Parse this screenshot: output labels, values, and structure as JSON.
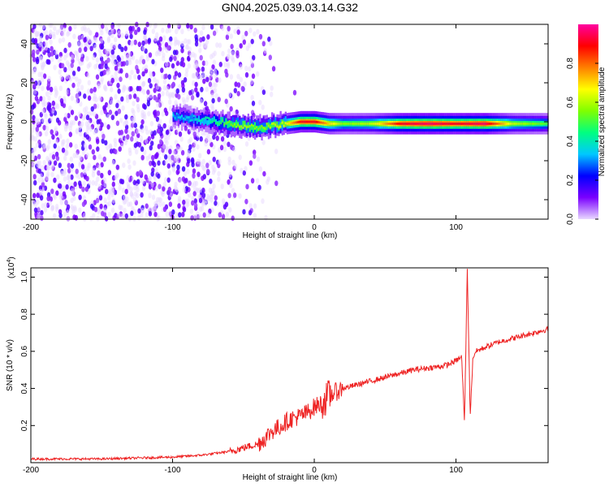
{
  "title": "GN04.2025.039.03.14.G32",
  "charts": [
    {
      "type": "heatmap",
      "xlabel": "Height of straight line (km)",
      "ylabel": "Frequency (Hz)",
      "xlim": [
        -200,
        165
      ],
      "ylim": [
        -50,
        50
      ],
      "xticks": [
        -200,
        -100,
        0,
        100
      ],
      "yticks": [
        -40,
        -20,
        0,
        20,
        40
      ],
      "colorbar": {
        "label": "Normalized spectral amplitude",
        "range": [
          0,
          1
        ],
        "ticks": [
          "0.0",
          "0.2",
          "0.4",
          "0.6",
          "0.8"
        ],
        "colors": [
          "#e8d8ff",
          "#7a00ff",
          "#0000ff",
          "#00c8ff",
          "#00ff80",
          "#80ff00",
          "#ffff00",
          "#ff8000",
          "#ff0000",
          "#ff00a0"
        ]
      },
      "ridge": {
        "description_points_x": [
          -100,
          -90,
          -80,
          -70,
          -60,
          -50,
          -40,
          -30,
          -20,
          -10,
          0,
          10,
          20,
          40,
          60,
          80,
          100,
          120,
          140,
          165
        ],
        "center_freq_hz": [
          3,
          2,
          1,
          0,
          -1,
          -2,
          -3,
          -2,
          -1,
          0,
          0,
          -1,
          -1,
          -1,
          -1,
          -1,
          -1,
          -1,
          -1,
          -1
        ],
        "peak_amplitude": [
          0.35,
          0.35,
          0.4,
          0.45,
          0.55,
          0.6,
          0.55,
          0.6,
          0.65,
          0.9,
          0.9,
          0.7,
          0.55,
          0.6,
          0.9,
          0.95,
          0.9,
          0.95,
          0.6,
          0.5
        ]
      },
      "noise_region_x": [
        -200,
        -40
      ]
    },
    {
      "type": "line",
      "xlabel": "Height of straight line (km)",
      "ylabel": "SNR (10 * v/v)",
      "multiplier_label_prefix": "(x10",
      "multiplier_label_exp": "4",
      "multiplier_label_suffix": ")",
      "xlim": [
        -200,
        165
      ],
      "ylim": [
        0,
        1.05
      ],
      "xticks": [
        -200,
        -100,
        0,
        100
      ],
      "yticks": [
        "0.2",
        "0.4",
        "0.6",
        "0.8",
        "1.0"
      ],
      "color": "#ee2222",
      "series": {
        "x": [
          -200,
          -150,
          -100,
          -80,
          -60,
          -50,
          -40,
          -35,
          -30,
          -25,
          -20,
          -15,
          -10,
          -5,
          0,
          5,
          8,
          10,
          12,
          15,
          20,
          30,
          40,
          50,
          60,
          70,
          80,
          90,
          95,
          100,
          104,
          106,
          108,
          110,
          112,
          114,
          120,
          130,
          140,
          150,
          160,
          165
        ],
        "y": [
          0.02,
          0.02,
          0.03,
          0.04,
          0.06,
          0.08,
          0.1,
          0.13,
          0.17,
          0.19,
          0.22,
          0.24,
          0.25,
          0.27,
          0.3,
          0.32,
          0.34,
          0.36,
          0.37,
          0.38,
          0.4,
          0.42,
          0.44,
          0.46,
          0.48,
          0.5,
          0.51,
          0.52,
          0.53,
          0.55,
          0.57,
          0.22,
          1.05,
          0.25,
          0.57,
          0.6,
          0.62,
          0.65,
          0.67,
          0.69,
          0.71,
          0.72
        ]
      },
      "noise_amplitude_notes": "jitter grows between -60 and 20, strong spikes near 10 and 107"
    }
  ]
}
